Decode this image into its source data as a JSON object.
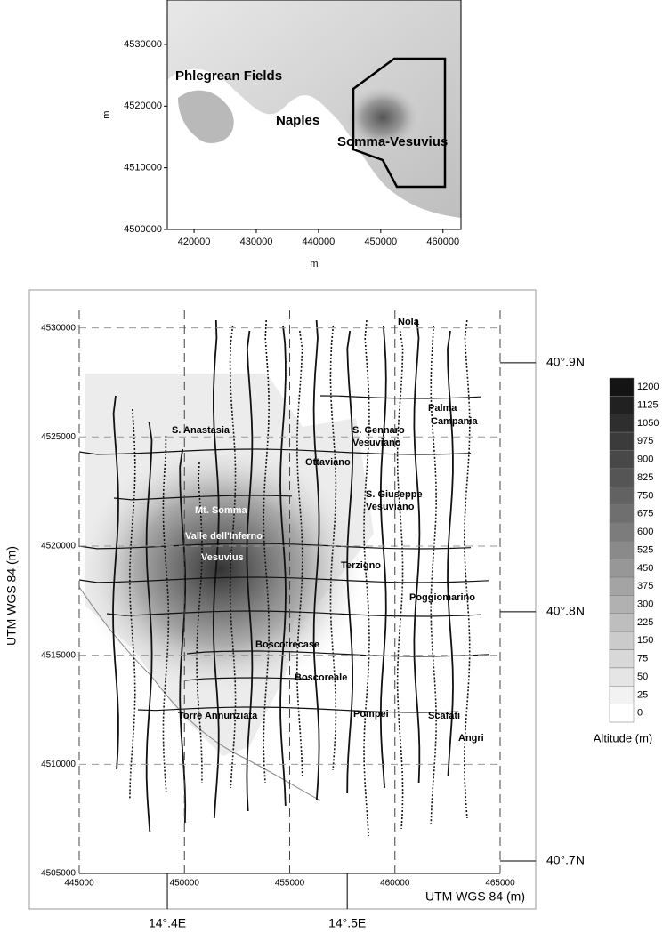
{
  "overview_map": {
    "xlabel": "m",
    "ylabel": "m",
    "xlim": [
      415700,
      462900
    ],
    "ylim": [
      4500000,
      4537200
    ],
    "xticks": [
      420000,
      430000,
      440000,
      450000,
      460000
    ],
    "yticks": [
      4500000,
      4510000,
      4520000,
      4530000
    ],
    "labels": [
      "Phlegrean Fields",
      "Naples",
      "Somma-Vesuvius"
    ]
  },
  "detail_map": {
    "xlabel": "UTM WGS 84 (m)",
    "ylabel": "UTM WGS 84 (m)",
    "xlim": [
      445000,
      465000
    ],
    "ylim": [
      4505000,
      4530800
    ],
    "xticks": [
      445000,
      450000,
      455000,
      460000,
      465000
    ],
    "yticks": [
      4505000,
      4510000,
      4515000,
      4520000,
      4525000,
      4530000
    ],
    "x2lim": [
      14.351,
      14.585
    ],
    "x2ticks": [
      {
        "value": 14.4,
        "label": "14°.4E"
      },
      {
        "value": 14.5,
        "label": "14°.5E"
      }
    ],
    "y2lim": [
      40.695,
      40.921
    ],
    "y2ticks": [
      {
        "value": 40.9,
        "label": "40°.9N"
      },
      {
        "value": 40.8,
        "label": "40°.8N"
      },
      {
        "value": 40.7,
        "label": "40°.7N"
      }
    ],
    "labels": [
      "Nola",
      "Palma",
      "Campania",
      "S. Anastasia",
      "S. Gennaro",
      "Vesuviano",
      "Ottaviano",
      "S. Giuseppe",
      "Vesuviano",
      "Mt. Somma",
      "Valle dell'Inferno",
      "Vesuvius",
      "Terzigno",
      "Poggiomarino",
      "Boscotrecase",
      "Boscoreale",
      "Torre Annunziata",
      "Pompei",
      "Scafati",
      "Angri"
    ]
  },
  "legend": {
    "title": "Altitude (m)",
    "levels": [
      1200,
      1125,
      1050,
      975,
      900,
      825,
      750,
      675,
      600,
      525,
      450,
      375,
      300,
      225,
      150,
      75,
      50,
      25,
      0
    ]
  }
}
